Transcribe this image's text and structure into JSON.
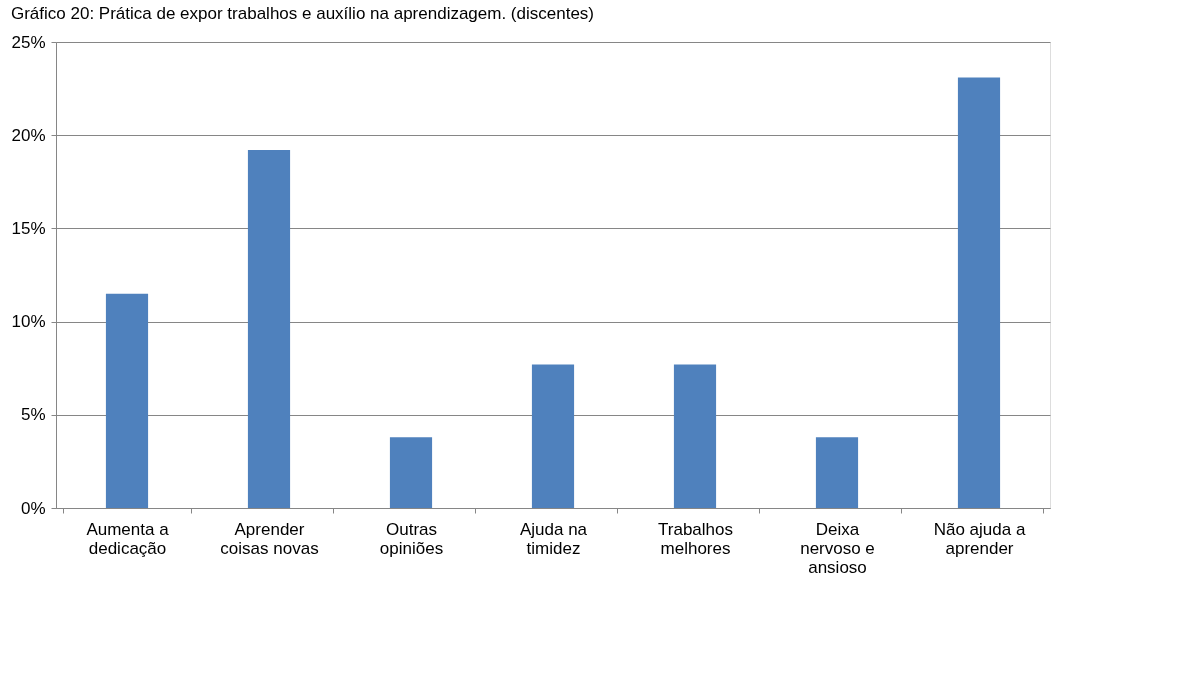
{
  "chart_data": {
    "type": "bar",
    "title": "Gráfico 20: Prática de expor trabalhos e auxílio na aprendizagem. (discentes)",
    "categories": [
      [
        "Aumenta a",
        "dedicação"
      ],
      [
        "Aprender",
        "coisas novas"
      ],
      [
        "Outras",
        "opiniões"
      ],
      [
        "Ajuda na",
        "timidez"
      ],
      [
        "Trabalhos",
        "melhores"
      ],
      [
        "Deixa",
        "nervoso e",
        "ansioso"
      ],
      [
        "Não ajuda a",
        "aprender"
      ]
    ],
    "values": [
      11.5,
      19.2,
      3.8,
      7.7,
      7.7,
      3.8,
      23.1
    ],
    "color": "#4f81bd",
    "ylim": [
      0,
      25
    ],
    "yticks": [
      {
        "value": 0,
        "label": "0%"
      },
      {
        "value": 5,
        "label": "5%"
      },
      {
        "value": 10,
        "label": "10%"
      },
      {
        "value": 15,
        "label": "15%"
      },
      {
        "value": 20,
        "label": "20%"
      },
      {
        "value": 25,
        "label": "25%"
      }
    ],
    "grid": "y"
  }
}
